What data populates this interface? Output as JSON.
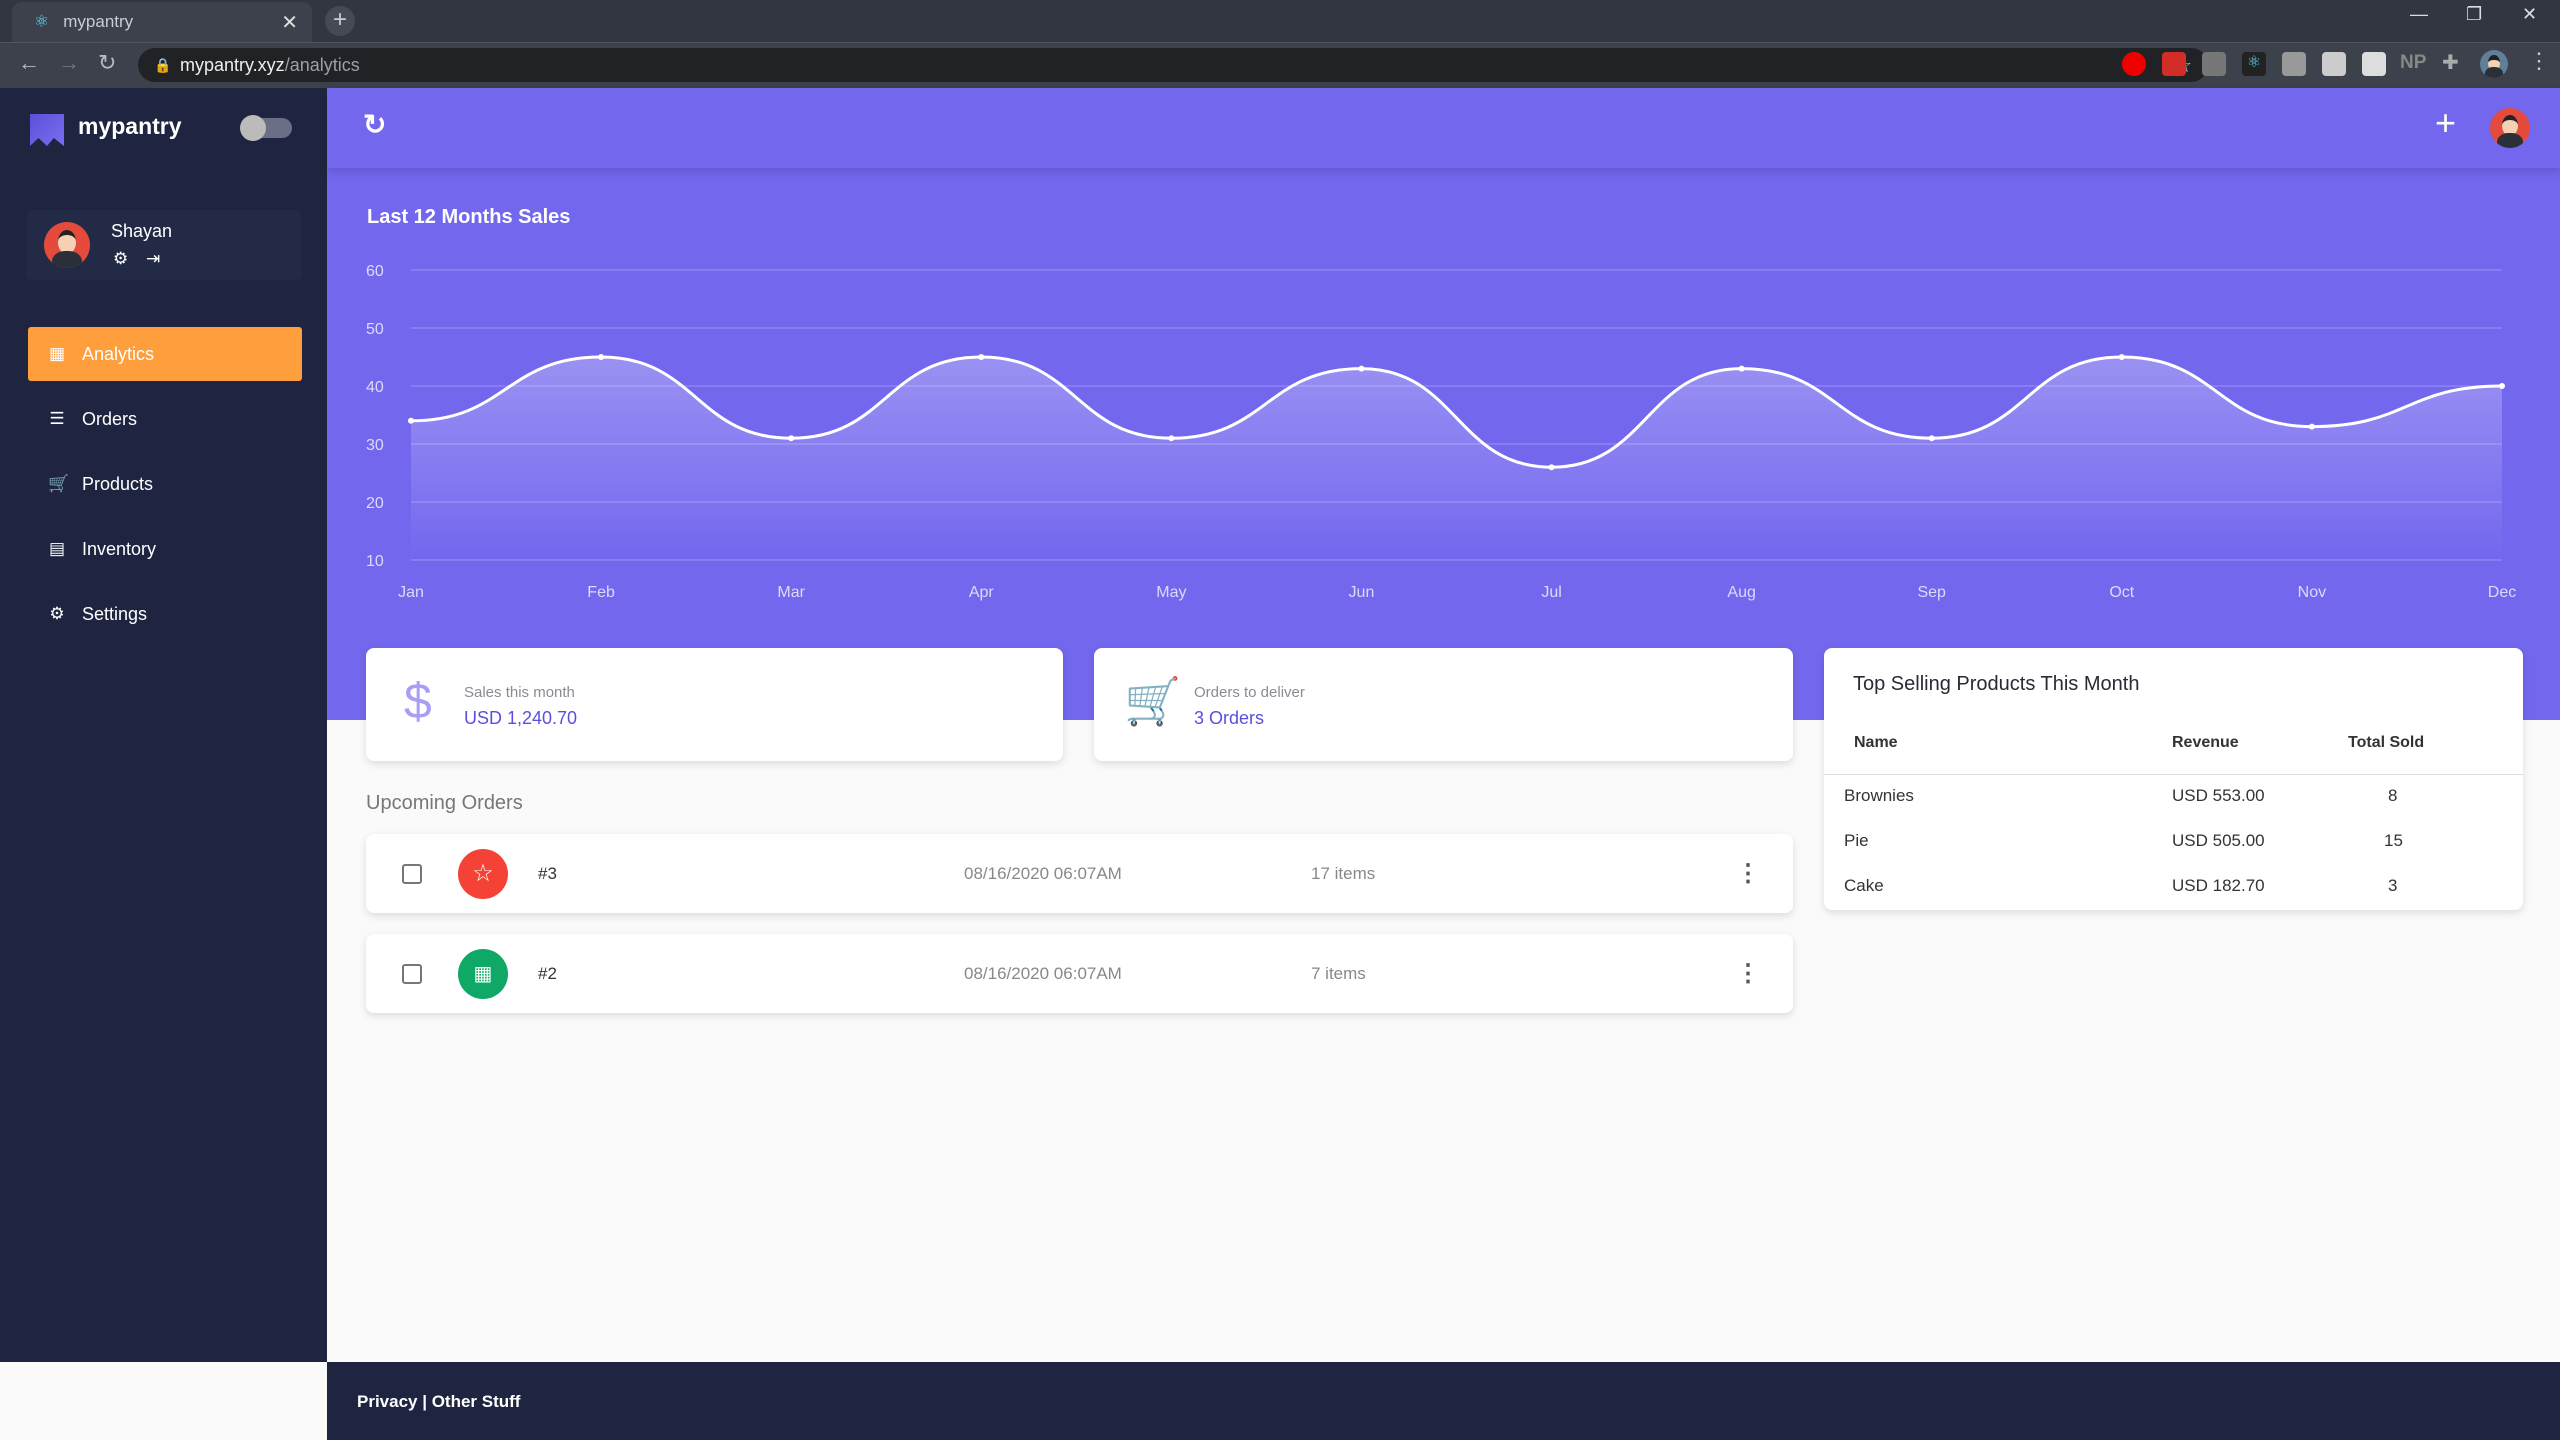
{
  "browser": {
    "tab_title": "mypantry",
    "url_host": "mypantry.xyz",
    "url_path": "/analytics",
    "extensions": [
      "adblock-icon",
      "lastpass-icon",
      "image-icon",
      "react-devtools-icon",
      "css-icon",
      "pen-icon",
      "cast-icon",
      "NP",
      "puzzle-icon"
    ]
  },
  "sidebar": {
    "brand": "mypantry",
    "user": {
      "name": "Shayan"
    },
    "items": [
      {
        "label": "Analytics",
        "icon": "dashboard-icon",
        "active": true
      },
      {
        "label": "Orders",
        "icon": "list-icon"
      },
      {
        "label": "Products",
        "icon": "cart-icon"
      },
      {
        "label": "Inventory",
        "icon": "inbox-icon"
      },
      {
        "label": "Settings",
        "icon": "gear-icon"
      }
    ]
  },
  "colors": {
    "primary": "#7367ee",
    "accent": "#ff9e3d",
    "sidebar": "#1f2541"
  },
  "chart_data": {
    "type": "line",
    "title": "Last 12 Months Sales",
    "categories": [
      "Jan",
      "Feb",
      "Mar",
      "Apr",
      "May",
      "Jun",
      "Jul",
      "Aug",
      "Sep",
      "Oct",
      "Nov",
      "Dec"
    ],
    "values": [
      34,
      45,
      31,
      45,
      31,
      43,
      26,
      43,
      31,
      45,
      33,
      40
    ],
    "ylim": [
      10,
      60
    ],
    "yticks": [
      "60",
      "50",
      "40",
      "30",
      "20",
      "10"
    ],
    "grid": true,
    "smooth": true,
    "area_fill": true
  },
  "stats": [
    {
      "label": "Sales this month",
      "value": "USD 1,240.70",
      "icon": "dollar-icon"
    },
    {
      "label": "Orders to deliver",
      "value": "3 Orders",
      "icon": "cart-icon"
    }
  ],
  "upcoming": {
    "title": "Upcoming Orders",
    "orders": [
      {
        "number": "#3",
        "date": "08/16/2020 06:07AM",
        "items": "17 items",
        "icon": "star-icon",
        "color": "#f44336"
      },
      {
        "number": "#2",
        "date": "08/16/2020 06:07AM",
        "items": "7 items",
        "icon": "calendar-icon",
        "color": "#10a866"
      }
    ]
  },
  "top_products": {
    "title": "Top Selling Products This Month",
    "columns": [
      "Name",
      "Revenue",
      "Total Sold"
    ],
    "rows": [
      [
        "Brownies",
        "USD 553.00",
        "8"
      ],
      [
        "Pie",
        "USD 505.00",
        "15"
      ],
      [
        "Cake",
        "USD 182.70",
        "3"
      ]
    ]
  },
  "footer": {
    "text": "Privacy | Other Stuff"
  }
}
